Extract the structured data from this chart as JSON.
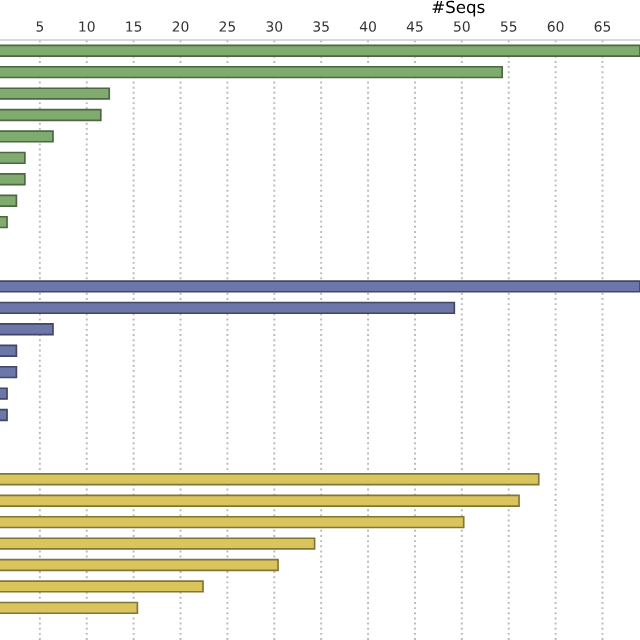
{
  "chart_data": {
    "type": "bar",
    "orientation": "horizontal",
    "xlabel": "#Seqs",
    "categories": [
      null,
      null,
      null,
      null,
      null,
      null,
      null,
      null,
      null,
      null,
      null,
      null,
      null,
      null,
      null,
      null,
      null,
      null,
      null,
      null,
      null,
      null,
      null,
      null,
      null,
      null,
      null,
      null
    ],
    "values": [
      69,
      54.3,
      12.4,
      11.5,
      6.4,
      3.4,
      3.4,
      2.5,
      1.5,
      null,
      null,
      69,
      49.2,
      6.4,
      2.5,
      2.5,
      1.5,
      1.5,
      null,
      null,
      58.2,
      56.1,
      50.2,
      34.3,
      30.4,
      22.4,
      15.4,
      null
    ],
    "colors": [
      "#7fab6e",
      "#7fab6e",
      "#7fab6e",
      "#7fab6e",
      "#7fab6e",
      "#7fab6e",
      "#7fab6e",
      "#7fab6e",
      "#7fab6e",
      null,
      null,
      "#6d76a8",
      "#6d76a8",
      "#6d76a8",
      "#6d76a8",
      "#6d76a8",
      "#6d76a8",
      "#6d76a8",
      null,
      null,
      "#d9c55c",
      "#d9c55c",
      "#d9c55c",
      "#d9c55c",
      "#d9c55c",
      "#d9c55c",
      "#d9c55c",
      null
    ],
    "xlim": [
      0.75,
      69
    ],
    "xticks": [
      5,
      10,
      15,
      20,
      25,
      30,
      35,
      40,
      45,
      50,
      55,
      60,
      65
    ],
    "grid": "x",
    "tick_labels": "x"
  }
}
